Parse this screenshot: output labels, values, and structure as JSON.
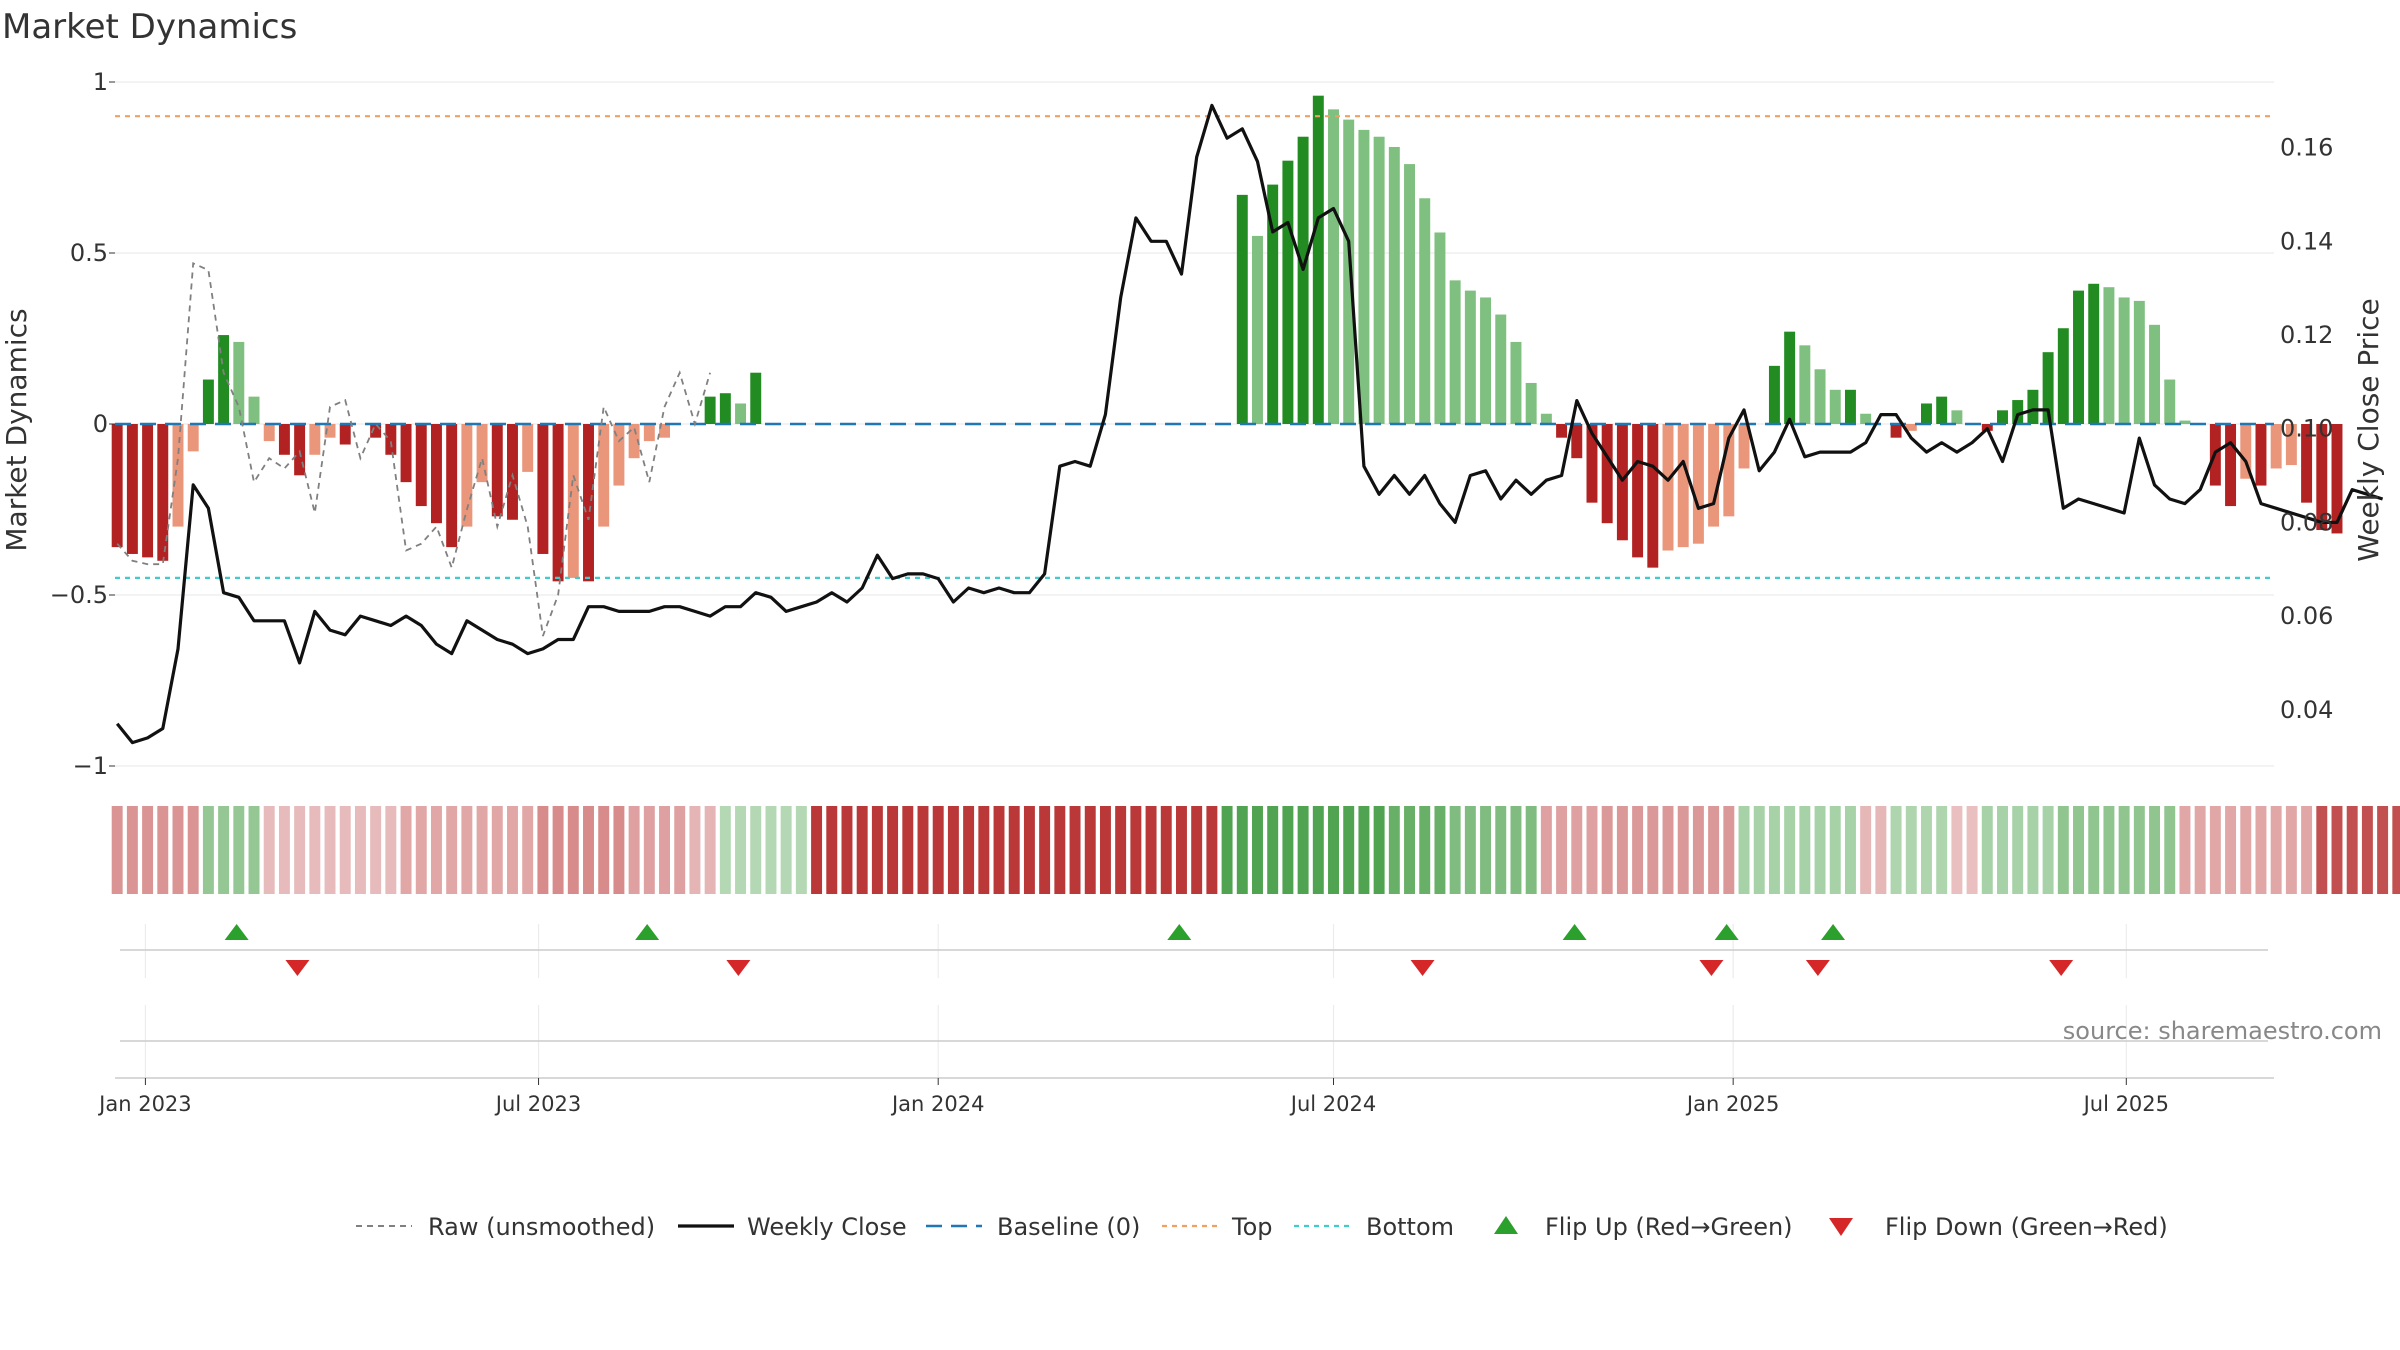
{
  "chart_data": {
    "type": "bar",
    "title": "Market Dynamics",
    "ylabel": "Market Dynamics",
    "y2label": "Weekly Close Price",
    "ylim": [
      -1,
      1
    ],
    "y2lim": [
      0.028,
      0.174
    ],
    "yticks": [
      "1",
      "0.5",
      "0",
      "−0.5",
      "−1"
    ],
    "y2ticks": [
      "0.16",
      "0.14",
      "0.12",
      "0.10",
      "0.08",
      "0.06",
      "0.04"
    ],
    "xlim": [
      "2022-12-18",
      "2025-09-07"
    ],
    "xticks": [
      {
        "date": "2023-01-01",
        "label": "Jan 2023"
      },
      {
        "date": "2023-07-01",
        "label": "Jul 2023"
      },
      {
        "date": "2024-01-01",
        "label": "Jan 2024"
      },
      {
        "date": "2024-07-01",
        "label": "Jul 2024"
      },
      {
        "date": "2025-01-01",
        "label": "Jan 2025"
      },
      {
        "date": "2025-07-01",
        "label": "Jul 2025"
      }
    ],
    "start_week": "2022-12-19",
    "top_level": 0.9,
    "bottom_level": -0.45,
    "baseline": 0,
    "colors": {
      "strong_green": "#228B22",
      "light_green": "#7FBF7F",
      "strong_red": "#B22222",
      "light_red": "#E9967A",
      "raw": "#808080",
      "close": "#111111",
      "baseline": "#1F77B4",
      "top": "#F0A060",
      "bottom": "#40CCCC",
      "flip_up": "#2CA02C",
      "flip_down": "#D62728"
    },
    "dynamics": [
      -0.36,
      -0.38,
      -0.39,
      -0.4,
      -0.3,
      -0.08,
      0.13,
      0.26,
      0.24,
      0.08,
      -0.05,
      -0.09,
      -0.15,
      -0.09,
      -0.04,
      -0.06,
      0,
      -0.04,
      -0.09,
      -0.17,
      -0.24,
      -0.29,
      -0.36,
      -0.3,
      -0.17,
      -0.27,
      -0.28,
      -0.14,
      -0.38,
      -0.46,
      -0.45,
      -0.46,
      -0.3,
      -0.18,
      -0.1,
      -0.05,
      -0.04,
      0,
      0,
      0.08,
      0.09,
      0.06,
      0.15,
      0,
      0,
      0,
      0,
      0,
      0,
      0,
      0,
      0,
      0,
      0,
      0,
      0,
      0,
      0,
      0,
      0,
      0,
      0,
      0,
      0,
      0,
      0,
      0,
      0,
      0,
      0,
      0,
      0,
      0,
      0,
      0.67,
      0.55,
      0.7,
      0.77,
      0.84,
      0.96,
      0.92,
      0.89,
      0.86,
      0.84,
      0.81,
      0.76,
      0.66,
      0.56,
      0.42,
      0.39,
      0.37,
      0.32,
      0.24,
      0.12,
      0.03,
      -0.04,
      -0.1,
      -0.23,
      -0.29,
      -0.34,
      -0.39,
      -0.42,
      -0.37,
      -0.36,
      -0.35,
      -0.3,
      -0.27,
      -0.13,
      0,
      0.17,
      0.27,
      0.23,
      0.16,
      0.1,
      0.1,
      0.03,
      0,
      -0.04,
      -0.02,
      0.06,
      0.08,
      0.04,
      0,
      -0.02,
      0.04,
      0.07,
      0.1,
      0.21,
      0.28,
      0.39,
      0.41,
      0.4,
      0.37,
      0.36,
      0.29,
      0.13,
      0.01,
      0,
      -0.18,
      -0.24,
      -0.16,
      -0.18,
      -0.13,
      -0.12,
      -0.23,
      -0.31,
      -0.32,
      0,
      0,
      0,
      0,
      0,
      0,
      0,
      0,
      0,
      0,
      0
    ],
    "raw": [
      -0.35,
      -0.4,
      -0.41,
      -0.41,
      -0.1,
      0.47,
      0.45,
      0.15,
      0.05,
      -0.17,
      -0.1,
      -0.13,
      -0.08,
      -0.26,
      0.05,
      0.07,
      -0.1,
      0,
      -0.05,
      -0.37,
      -0.35,
      -0.3,
      -0.42,
      -0.25,
      -0.1,
      -0.3,
      -0.15,
      -0.3,
      -0.62,
      -0.5,
      -0.15,
      -0.28,
      0.05,
      -0.05,
      -0.01,
      -0.17,
      0.05,
      0.15,
      0,
      0.15
    ],
    "close": [
      0.037,
      0.033,
      0.034,
      0.036,
      0.053,
      0.088,
      0.083,
      0.065,
      0.064,
      0.059,
      0.059,
      0.059,
      0.05,
      0.061,
      0.057,
      0.056,
      0.06,
      0.059,
      0.058,
      0.06,
      0.058,
      0.054,
      0.052,
      0.059,
      0.057,
      0.055,
      0.054,
      0.052,
      0.053,
      0.055,
      0.055,
      0.062,
      0.062,
      0.061,
      0.061,
      0.061,
      0.062,
      0.062,
      0.061,
      0.06,
      0.062,
      0.062,
      0.065,
      0.064,
      0.061,
      0.062,
      0.063,
      0.065,
      0.063,
      0.066,
      0.073,
      0.068,
      0.069,
      0.069,
      0.068,
      0.063,
      0.066,
      0.065,
      0.066,
      0.065,
      0.065,
      0.069,
      0.092,
      0.093,
      0.092,
      0.103,
      0.128,
      0.145,
      0.14,
      0.14,
      0.133,
      0.158,
      0.169,
      0.162,
      0.164,
      0.157,
      0.142,
      0.144,
      0.134,
      0.145,
      0.147,
      0.14,
      0.092,
      0.086,
      0.09,
      0.086,
      0.09,
      0.084,
      0.08,
      0.09,
      0.091,
      0.085,
      0.089,
      0.086,
      0.089,
      0.09,
      0.106,
      0.099,
      0.094,
      0.089,
      0.093,
      0.092,
      0.089,
      0.093,
      0.083,
      0.084,
      0.098,
      0.104,
      0.091,
      0.095,
      0.102,
      0.094,
      0.095,
      0.095,
      0.095,
      0.097,
      0.103,
      0.103,
      0.098,
      0.095,
      0.097,
      0.095,
      0.097,
      0.1,
      0.093,
      0.103,
      0.104,
      0.104,
      0.083,
      0.085,
      0.084,
      0.083,
      0.082,
      0.098,
      0.088,
      0.085,
      0.084,
      0.087,
      0.095,
      0.097,
      0.093,
      0.084,
      0.083,
      0.082,
      0.081,
      0.08,
      0.08,
      0.087,
      0.086,
      0.085
    ],
    "regime_strips": [
      -0.42,
      -0.42,
      -0.42,
      -0.42,
      -0.42,
      -0.42,
      0.42,
      0.42,
      0.42,
      0.42,
      -0.18,
      -0.18,
      -0.18,
      -0.18,
      -0.18,
      -0.18,
      -0.18,
      -0.18,
      -0.18,
      -0.3,
      -0.3,
      -0.3,
      -0.3,
      -0.3,
      -0.3,
      -0.3,
      -0.3,
      -0.3,
      -0.48,
      -0.48,
      -0.48,
      -0.48,
      -0.48,
      -0.48,
      -0.35,
      -0.35,
      -0.35,
      -0.35,
      -0.22,
      -0.22,
      0.22,
      0.22,
      0.22,
      0.22,
      0.22,
      0.22,
      -1,
      -1,
      -1,
      -1,
      -1,
      -1,
      -1,
      -1,
      -1,
      -1,
      -1,
      -1,
      -1,
      -1,
      -1,
      -1,
      -1,
      -1,
      -1,
      -1,
      -1,
      -1,
      -1,
      -1,
      -1,
      -1,
      -1,
      0.85,
      0.85,
      0.85,
      0.85,
      0.85,
      0.85,
      0.85,
      0.85,
      0.85,
      0.85,
      0.85,
      0.7,
      0.7,
      0.7,
      0.7,
      0.55,
      0.55,
      0.55,
      0.55,
      0.55,
      0.55,
      -0.35,
      -0.35,
      -0.35,
      -0.35,
      -0.4,
      -0.4,
      -0.4,
      -0.4,
      -0.4,
      -0.4,
      -0.4,
      -0.4,
      -0.4,
      0.3,
      0.3,
      0.3,
      0.3,
      0.3,
      0.3,
      0.3,
      0.3,
      -0.2,
      -0.2,
      0.25,
      0.25,
      0.25,
      0.25,
      -0.15,
      -0.15,
      0.3,
      0.3,
      0.3,
      0.3,
      0.3,
      0.45,
      0.45,
      0.45,
      0.45,
      0.45,
      0.45,
      0.45,
      0.45,
      -0.3,
      -0.3,
      -0.3,
      -0.3,
      -0.3,
      -0.3,
      -0.3,
      -0.3,
      -0.3,
      -0.85,
      -0.85,
      -0.85,
      -0.85,
      -0.85,
      -0.85,
      -0.85,
      -0.85,
      -0.85,
      -0.85,
      -0.85
    ],
    "flips_up": [
      "2023-02-12",
      "2023-08-20",
      "2024-04-21",
      "2024-10-20",
      "2024-12-29",
      "2025-02-16"
    ],
    "flips_down": [
      "2023-03-12",
      "2023-10-01",
      "2024-08-11",
      "2024-12-22",
      "2025-02-09",
      "2025-06-01"
    ],
    "legend": [
      {
        "key": "raw",
        "label": "Raw (unsmoothed)"
      },
      {
        "key": "close",
        "label": "Weekly Close"
      },
      {
        "key": "baseline",
        "label": "Baseline (0)"
      },
      {
        "key": "top",
        "label": "Top"
      },
      {
        "key": "bottom",
        "label": "Bottom"
      },
      {
        "key": "flip_up",
        "label": "Flip Up (Red→Green)"
      },
      {
        "key": "flip_down",
        "label": "Flip Down (Green→Red)"
      }
    ],
    "legend_position": "bottom-center",
    "grid": true,
    "watermark": "source: sharemaestro.com"
  }
}
